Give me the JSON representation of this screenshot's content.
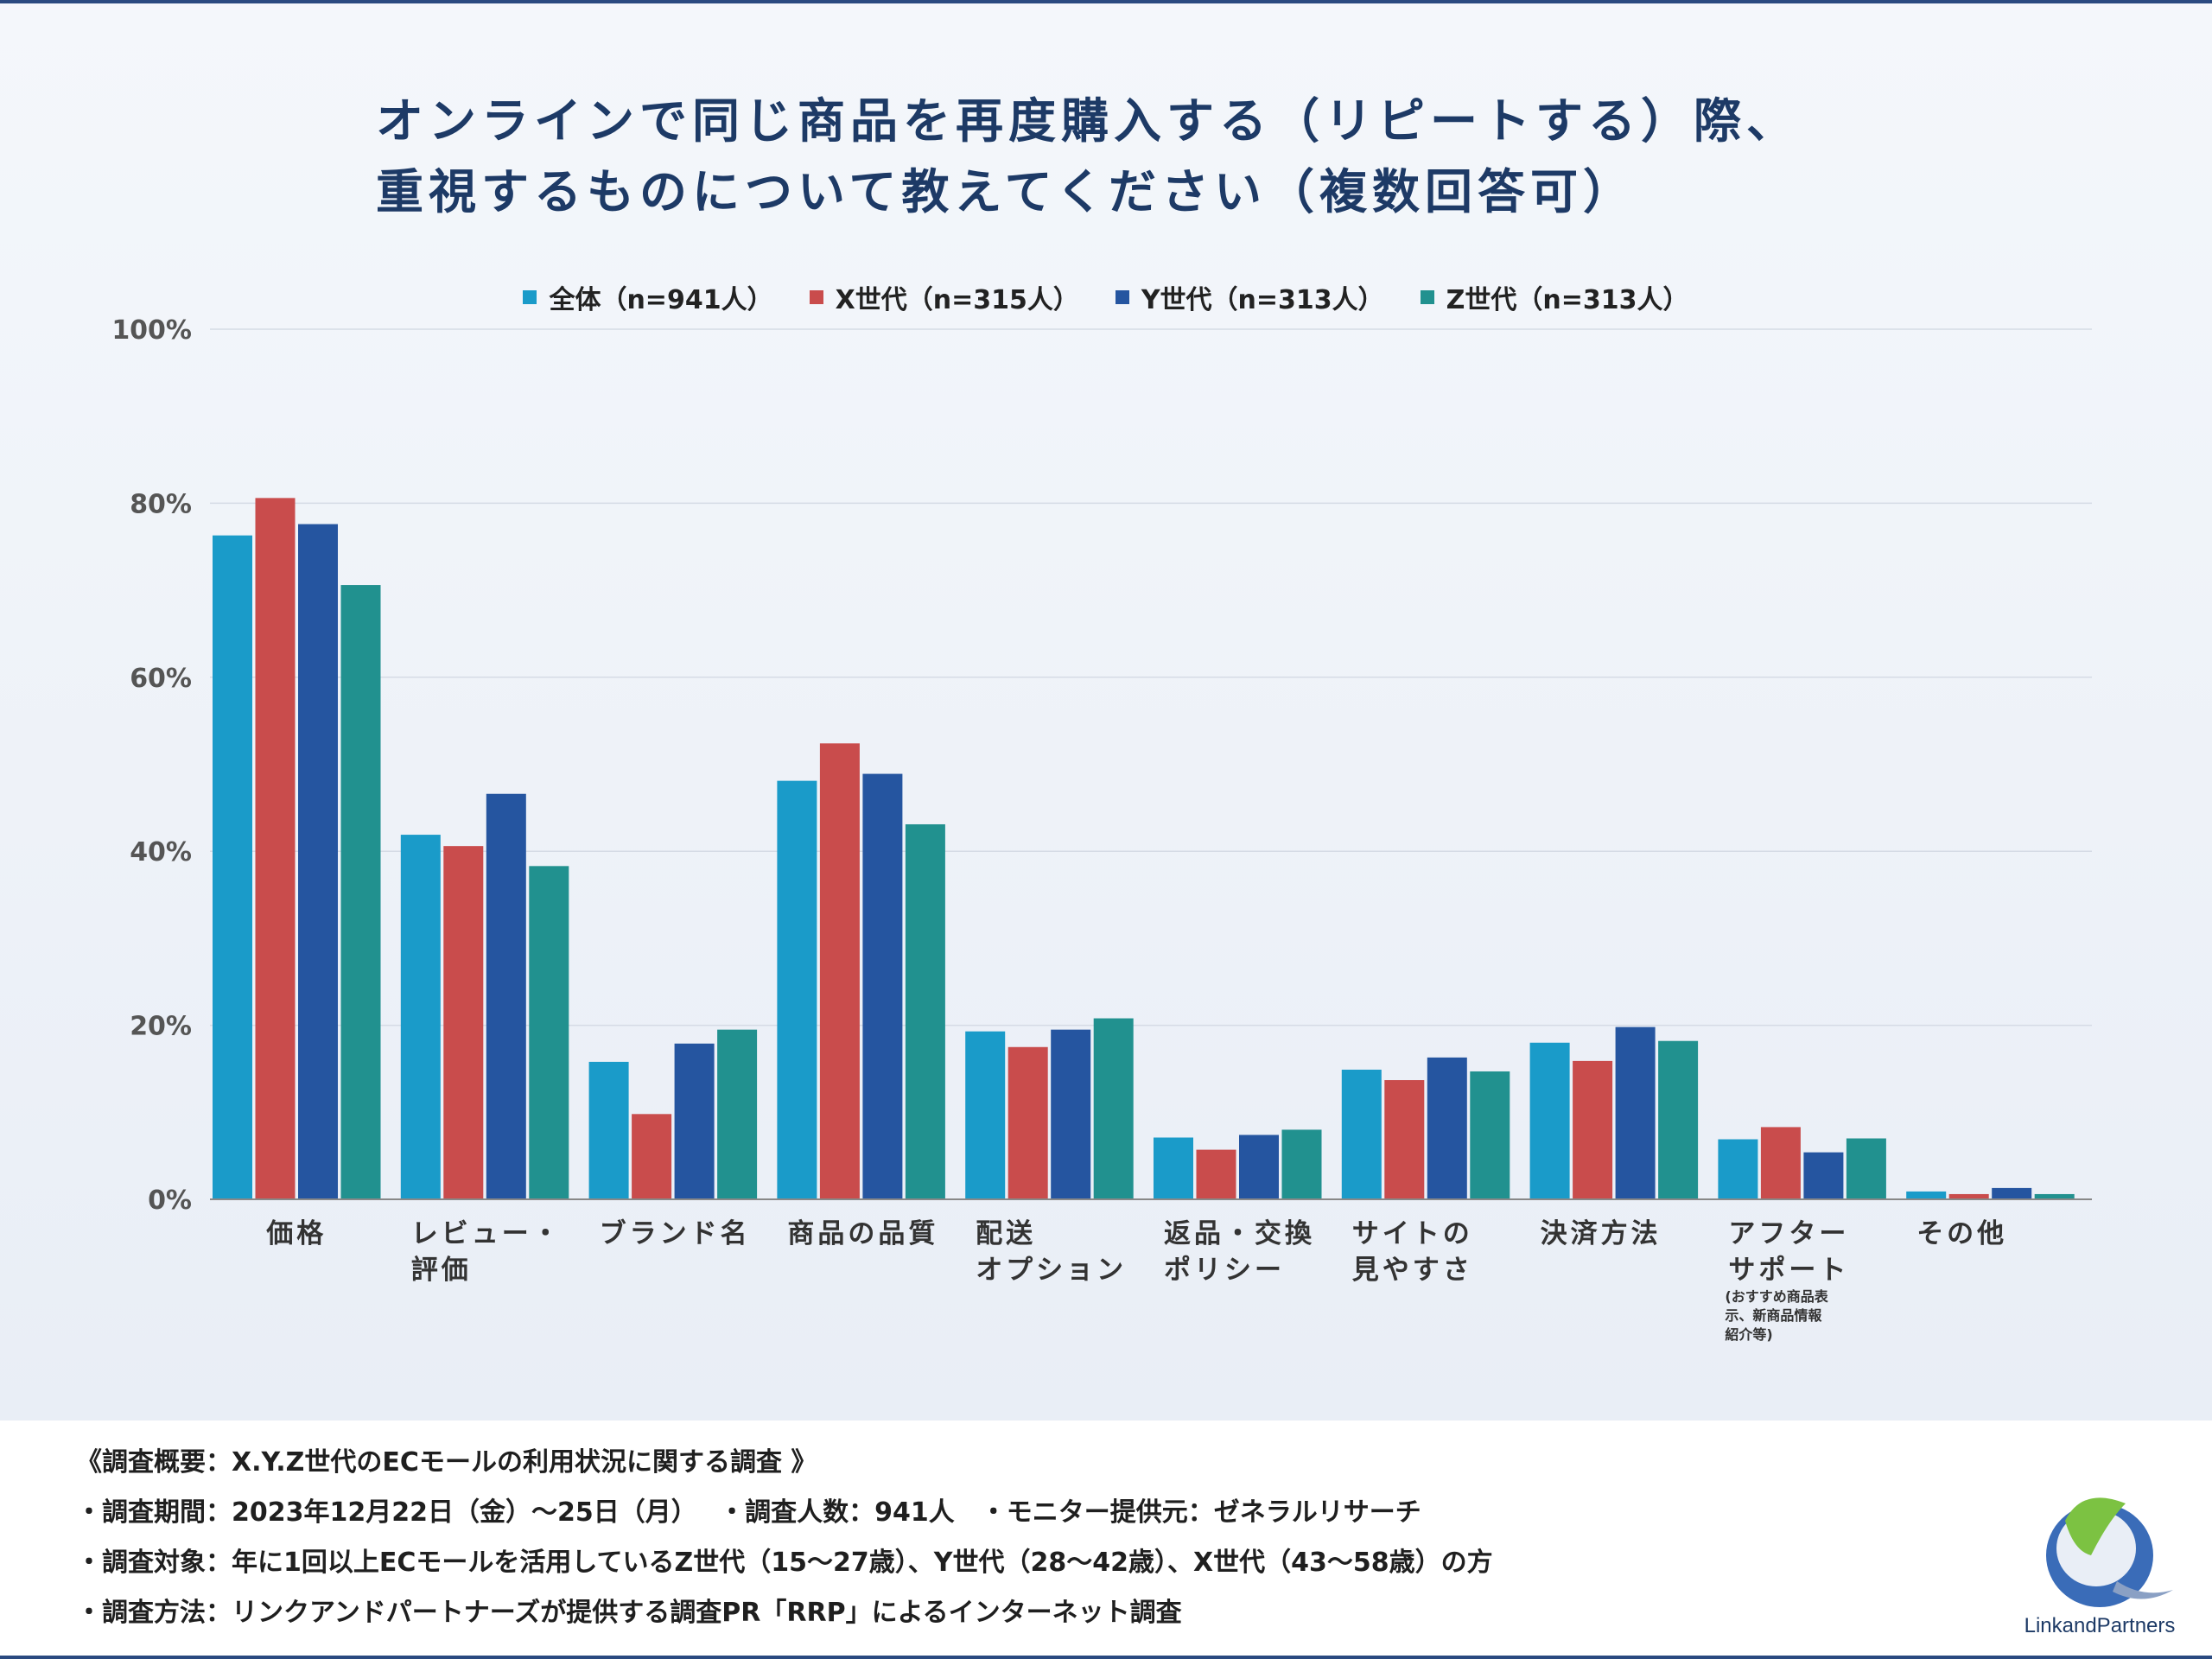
{
  "title": {
    "line1": "オンラインで同じ商品を再度購入する（リピートする）際、",
    "line2": "重視するものについて教えてください（複数回答可）"
  },
  "chart_data": {
    "type": "bar",
    "title": "オンラインで同じ商品を再度購入する（リピートする）際、重視するものについて教えてください（複数回答可）",
    "categories": [
      [
        "価格"
      ],
      [
        "レビュー・",
        "評価"
      ],
      [
        "ブランド名"
      ],
      [
        "商品の品質"
      ],
      [
        "配送",
        "オプション"
      ],
      [
        "返品・交換",
        "ポリシー"
      ],
      [
        "サイトの",
        "見やすさ"
      ],
      [
        "決済方法"
      ],
      [
        "アフター",
        "サポート"
      ],
      [
        "その他"
      ]
    ],
    "category_notes": [
      "",
      "",
      "",
      "",
      "",
      "",
      "",
      "",
      "(おすすめ商品表示、新商品情報紹介等)",
      ""
    ],
    "category_note_lines": [
      "(おすすめ商品表",
      "示、新商品情報",
      "紹介等)"
    ],
    "series": [
      {
        "name": "全体（n=941人）",
        "color": "#1a9bc9",
        "values": [
          76.3,
          41.9,
          15.8,
          48.1,
          19.3,
          7.1,
          14.9,
          18.0,
          6.9,
          0.9
        ]
      },
      {
        "name": "X世代（n=315人）",
        "color": "#c94c4c",
        "values": [
          80.6,
          40.6,
          9.8,
          52.4,
          17.5,
          5.7,
          13.7,
          15.9,
          8.3,
          0.6
        ]
      },
      {
        "name": "Y世代（n=313人）",
        "color": "#2555a0",
        "values": [
          77.6,
          46.6,
          17.9,
          48.9,
          19.5,
          7.4,
          16.3,
          19.8,
          5.4,
          1.3
        ]
      },
      {
        "name": "Z世代（n=313人）",
        "color": "#21918f",
        "values": [
          70.6,
          38.3,
          19.5,
          43.1,
          20.8,
          8.0,
          14.7,
          18.2,
          7.0,
          0.6
        ]
      }
    ],
    "ylim": [
      0,
      100
    ],
    "yticks": [
      "0%",
      "20%",
      "40%",
      "60%",
      "80%",
      "100%"
    ],
    "grid": true,
    "legend_position": "top-center",
    "xlabel": "",
    "ylabel": ""
  },
  "footer": {
    "notes": [
      "《調査概要：X.Y.Z世代のECモールの利用状況に関する調査 》",
      "・調査期間：2023年12月22日（金）～25日（月）　 ・調査人数：941人　・モニター提供元：ゼネラルリサーチ",
      "・調査対象：年に1回以上ECモールを活用しているZ世代（15～27歳）、Y世代（28～42歳）、X世代（43～58歳）の方",
      "・調査方法：リンクアンドパートナーズが提供する調査PR「RRP」によるインターネット調査"
    ],
    "logo_text": "LinkandPartners"
  },
  "colors": {
    "title": "#1d3a66",
    "grid": "#d5dbe5",
    "axis": "#555555"
  }
}
